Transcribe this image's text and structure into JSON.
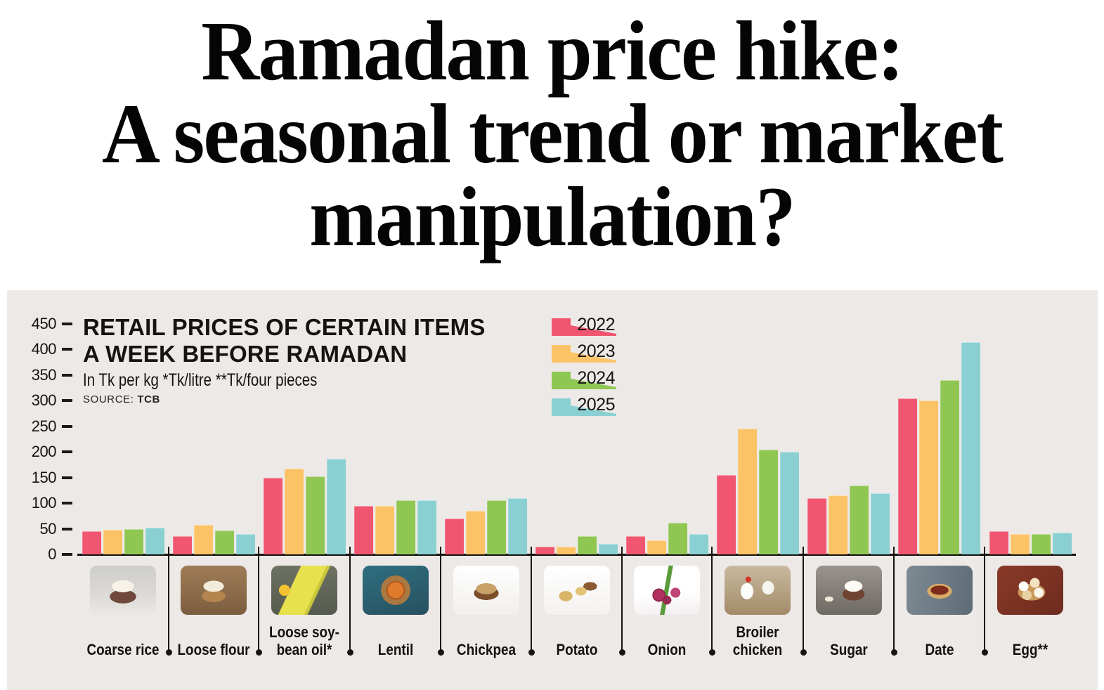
{
  "headline": {
    "lines": [
      "Ramadan price hike:",
      "A seasonal trend or market",
      "manipulation?"
    ]
  },
  "panel": {
    "background": "#ede9e7",
    "heading_lines": [
      "RETAIL PRICES OF CERTAIN ITEMS",
      "A WEEK BEFORE RAMADAN"
    ],
    "subtitle": "In Tk per kg *Tk/litre **Tk/four pieces",
    "source_label": "SOURCE:",
    "source_value": "TCB"
  },
  "chart_data": {
    "type": "bar",
    "title": "RETAIL PRICES OF CERTAIN ITEMS A WEEK BEFORE RAMADAN",
    "unit_note": "In Tk per kg *Tk/litre **Tk/four pieces",
    "source": "TCB",
    "ylim": [
      0,
      450
    ],
    "y_ticks": [
      450,
      400,
      350,
      300,
      250,
      200,
      150,
      100,
      50,
      0
    ],
    "grid": false,
    "legend_position": "top-right",
    "categories": [
      "Coarse rice",
      "Loose flour",
      "Loose soy-bean oil*",
      "Lentil",
      "Chickpea",
      "Potato",
      "Onion",
      "Broiler chicken",
      "Sugar",
      "Date",
      "Egg**"
    ],
    "series": [
      {
        "name": "2022",
        "color": "#f0566f",
        "values": [
          45,
          35,
          150,
          95,
          70,
          15,
          35,
          155,
          110,
          305,
          45
        ]
      },
      {
        "name": "2023",
        "color": "#fcc366",
        "values": [
          48,
          57,
          167,
          95,
          85,
          15,
          28,
          245,
          115,
          300,
          40
        ]
      },
      {
        "name": "2024",
        "color": "#90c652",
        "values": [
          50,
          47,
          152,
          105,
          105,
          35,
          62,
          205,
          135,
          340,
          40
        ]
      },
      {
        "name": "2025",
        "color": "#8ad0d3",
        "values": [
          52,
          40,
          187,
          105,
          110,
          20,
          40,
          200,
          120,
          415,
          42
        ]
      }
    ]
  },
  "items": [
    {
      "label_lines": [
        "Coarse rice"
      ],
      "photo": "coarse-rice"
    },
    {
      "label_lines": [
        "Loose flour"
      ],
      "photo": "loose-flour"
    },
    {
      "label_lines": [
        "Loose soy-",
        "bean oil*"
      ],
      "photo": "soybean-oil"
    },
    {
      "label_lines": [
        "Lentil"
      ],
      "photo": "lentil"
    },
    {
      "label_lines": [
        "Chickpea"
      ],
      "photo": "chickpea"
    },
    {
      "label_lines": [
        "Potato"
      ],
      "photo": "potato"
    },
    {
      "label_lines": [
        "Onion"
      ],
      "photo": "onion"
    },
    {
      "label_lines": [
        "Broiler",
        "chicken"
      ],
      "photo": "broiler-chicken"
    },
    {
      "label_lines": [
        "Sugar"
      ],
      "photo": "sugar"
    },
    {
      "label_lines": [
        "Date"
      ],
      "photo": "date"
    },
    {
      "label_lines": [
        "Egg**"
      ],
      "photo": "egg"
    }
  ]
}
